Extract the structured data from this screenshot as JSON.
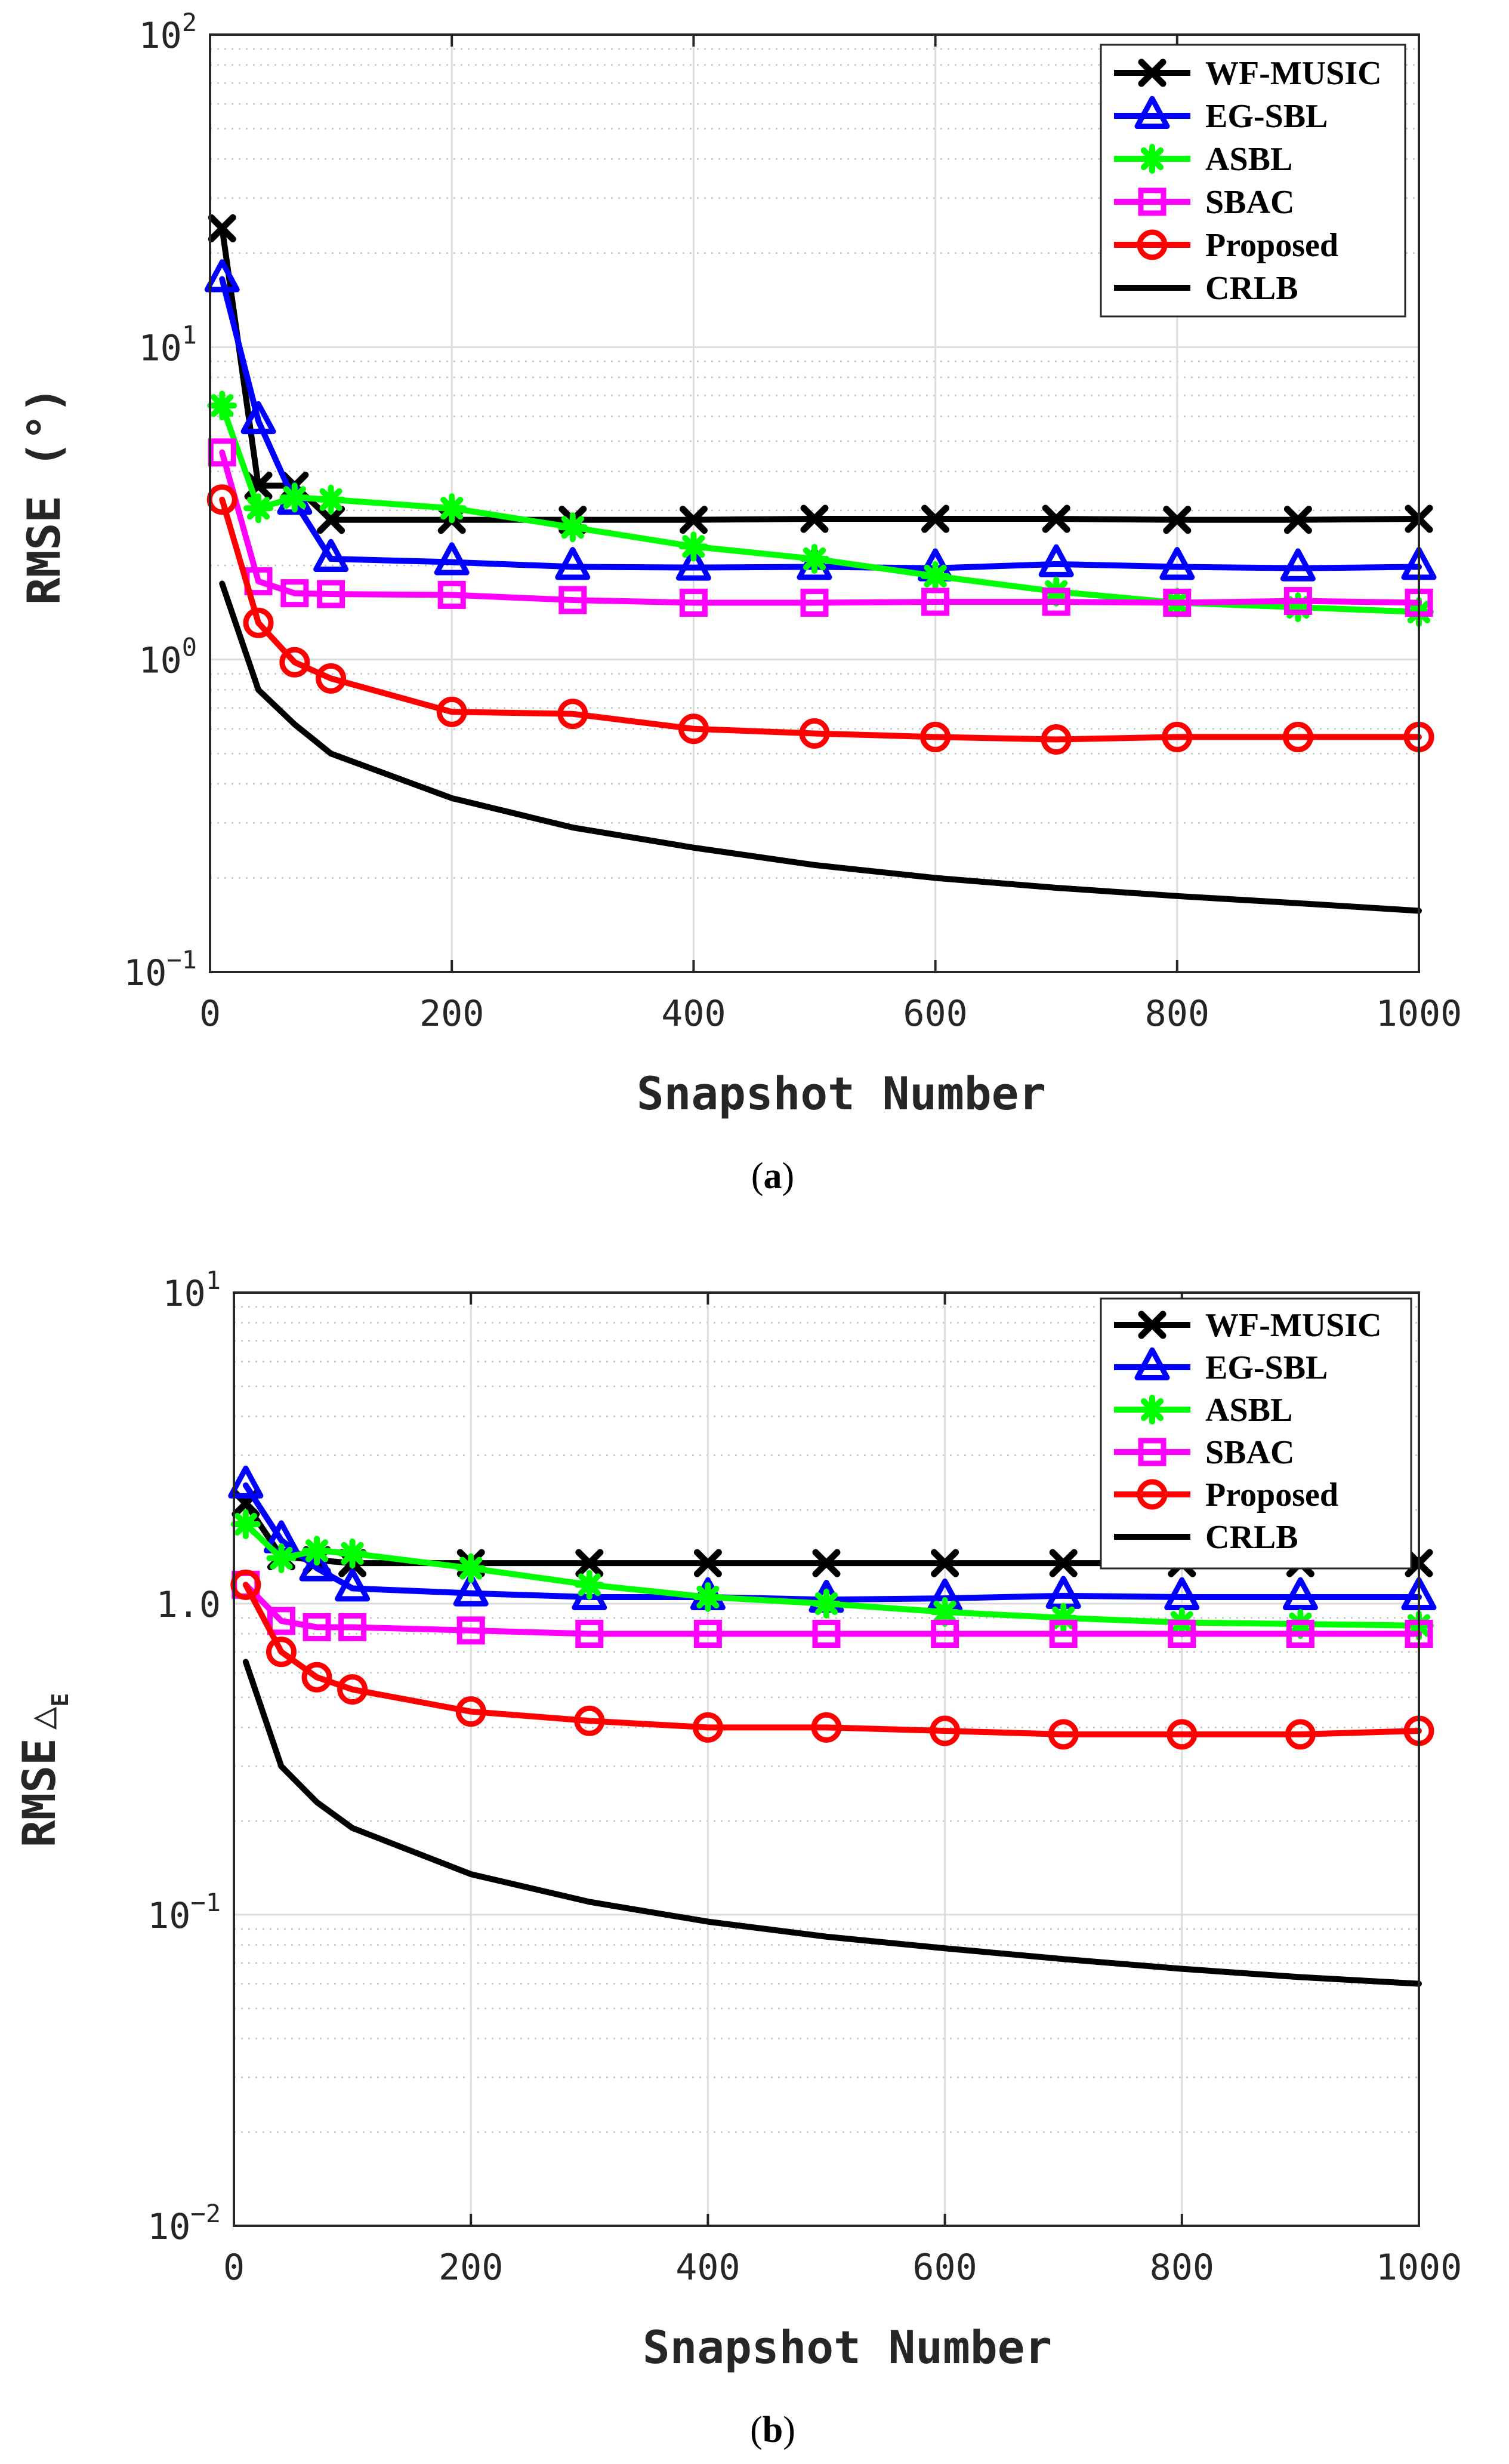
{
  "chart_data": [
    {
      "type": "line",
      "yscale": "log",
      "caption_letter": "a",
      "xlabel": "Snapshot Number",
      "ylabel": "RMSE (°)",
      "xlim": [
        0,
        1000
      ],
      "ylim": [
        0.1,
        100
      ],
      "xticks": [
        0,
        200,
        400,
        600,
        800,
        1000
      ],
      "ytick_labels": [
        {
          "base": "10",
          "exp": "−1",
          "value": 0.1
        },
        {
          "base": "10",
          "exp": "0",
          "value": 1
        },
        {
          "base": "10",
          "exp": "1",
          "value": 10
        },
        {
          "base": "10",
          "exp": "2",
          "value": 100
        }
      ],
      "grid": true,
      "legend_position": "top-right",
      "series": [
        {
          "name": "WF-MUSIC",
          "color": "#000000",
          "marker": "x",
          "x": [
            10,
            40,
            70,
            100,
            200,
            300,
            400,
            500,
            600,
            700,
            800,
            900,
            1000
          ],
          "values": [
            24,
            3.6,
            3.6,
            2.8,
            2.8,
            2.8,
            2.8,
            2.82,
            2.82,
            2.82,
            2.8,
            2.8,
            2.82
          ]
        },
        {
          "name": "EG-SBL",
          "color": "#0000ff",
          "marker": "triangle",
          "x": [
            10,
            40,
            70,
            100,
            200,
            300,
            400,
            500,
            600,
            700,
            800,
            900,
            1000
          ],
          "values": [
            16.5,
            5.8,
            3.2,
            2.1,
            2.05,
            1.98,
            1.97,
            1.98,
            1.96,
            2.02,
            1.98,
            1.96,
            1.98
          ]
        },
        {
          "name": "ASBL",
          "color": "#00ff00",
          "marker": "asterisk",
          "x": [
            10,
            40,
            70,
            100,
            200,
            300,
            400,
            500,
            600,
            700,
            800,
            900,
            1000
          ],
          "values": [
            6.5,
            3.05,
            3.3,
            3.25,
            3.05,
            2.65,
            2.3,
            2.1,
            1.85,
            1.65,
            1.52,
            1.47,
            1.42
          ]
        },
        {
          "name": "SBAC",
          "color": "#ff00ff",
          "marker": "square",
          "x": [
            10,
            40,
            70,
            100,
            200,
            300,
            400,
            500,
            600,
            700,
            800,
            900,
            1000
          ],
          "values": [
            4.6,
            1.78,
            1.63,
            1.62,
            1.61,
            1.55,
            1.52,
            1.52,
            1.53,
            1.53,
            1.52,
            1.54,
            1.52
          ]
        },
        {
          "name": "Proposed",
          "color": "#ff0000",
          "marker": "circle",
          "x": [
            10,
            40,
            70,
            100,
            200,
            300,
            400,
            500,
            600,
            700,
            800,
            900,
            1000
          ],
          "values": [
            3.25,
            1.31,
            0.98,
            0.87,
            0.68,
            0.67,
            0.6,
            0.58,
            0.565,
            0.555,
            0.565,
            0.565,
            0.565
          ]
        },
        {
          "name": "CRLB",
          "color": "#000000",
          "marker": "none",
          "x": [
            10,
            40,
            70,
            100,
            200,
            300,
            400,
            500,
            600,
            700,
            800,
            900,
            1000
          ],
          "values": [
            1.75,
            0.8,
            0.62,
            0.5,
            0.36,
            0.29,
            0.25,
            0.22,
            0.2,
            0.186,
            0.175,
            0.166,
            0.157
          ]
        }
      ]
    },
    {
      "type": "line",
      "yscale": "log",
      "caption_letter": "b",
      "xlabel": "Snapshot Number",
      "ylabel": "RMSE",
      "ylabel_symbol": "△",
      "ylabel_subscript": "E",
      "xlim": [
        0,
        1000
      ],
      "ylim": [
        0.01,
        10
      ],
      "xticks": [
        0,
        200,
        400,
        600,
        800,
        1000
      ],
      "ytick_labels": [
        {
          "base": "10",
          "exp": "−2",
          "value": 0.01
        },
        {
          "base": "10",
          "exp": "−1",
          "value": 0.1
        },
        {
          "base": "1.0",
          "exp": "",
          "value": 1
        },
        {
          "base": "10",
          "exp": "1",
          "value": 10
        }
      ],
      "grid": true,
      "legend_position": "top-right",
      "series": [
        {
          "name": "WF-MUSIC",
          "color": "#000000",
          "marker": "x",
          "x": [
            10,
            40,
            70,
            100,
            200,
            300,
            400,
            500,
            600,
            700,
            800,
            900,
            1000
          ],
          "values": [
            2.1,
            1.42,
            1.38,
            1.35,
            1.35,
            1.35,
            1.35,
            1.35,
            1.35,
            1.35,
            1.35,
            1.35,
            1.35
          ]
        },
        {
          "name": "EG-SBL",
          "color": "#0000ff",
          "marker": "triangle",
          "x": [
            10,
            40,
            70,
            100,
            200,
            300,
            400,
            500,
            600,
            700,
            800,
            900,
            1000
          ],
          "values": [
            2.4,
            1.6,
            1.3,
            1.12,
            1.08,
            1.05,
            1.05,
            1.03,
            1.04,
            1.06,
            1.05,
            1.05,
            1.05
          ]
        },
        {
          "name": "ASBL",
          "color": "#00ff00",
          "marker": "asterisk",
          "x": [
            10,
            40,
            70,
            100,
            200,
            300,
            400,
            500,
            600,
            700,
            800,
            900,
            1000
          ],
          "values": [
            1.8,
            1.4,
            1.48,
            1.45,
            1.3,
            1.15,
            1.05,
            1.0,
            0.94,
            0.9,
            0.87,
            0.86,
            0.85
          ]
        },
        {
          "name": "SBAC",
          "color": "#ff00ff",
          "marker": "square",
          "x": [
            10,
            40,
            70,
            100,
            200,
            300,
            400,
            500,
            600,
            700,
            800,
            900,
            1000
          ],
          "values": [
            1.15,
            0.88,
            0.84,
            0.84,
            0.82,
            0.8,
            0.8,
            0.8,
            0.8,
            0.8,
            0.8,
            0.8,
            0.8
          ]
        },
        {
          "name": "Proposed",
          "color": "#ff0000",
          "marker": "circle",
          "x": [
            10,
            40,
            70,
            100,
            200,
            300,
            400,
            500,
            600,
            700,
            800,
            900,
            1000
          ],
          "values": [
            1.15,
            0.7,
            0.58,
            0.53,
            0.45,
            0.42,
            0.4,
            0.4,
            0.39,
            0.38,
            0.38,
            0.38,
            0.39
          ]
        },
        {
          "name": "CRLB",
          "color": "#000000",
          "marker": "none",
          "x": [
            10,
            40,
            70,
            100,
            200,
            300,
            400,
            500,
            600,
            700,
            800,
            900,
            1000
          ],
          "values": [
            0.65,
            0.3,
            0.23,
            0.19,
            0.135,
            0.11,
            0.095,
            0.085,
            0.078,
            0.072,
            0.067,
            0.063,
            0.06
          ]
        }
      ]
    }
  ]
}
